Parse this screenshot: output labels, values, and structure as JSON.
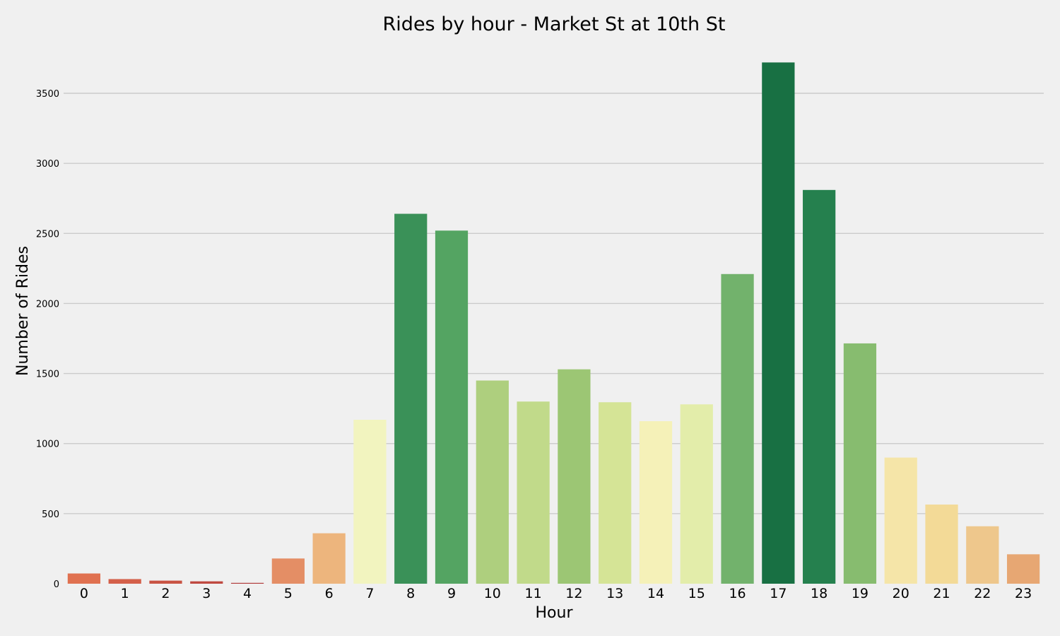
{
  "chart_data": {
    "type": "bar",
    "title": "Rides by hour - Market St at 10th St",
    "xlabel": "Hour",
    "ylabel": "Number of Rides",
    "categories": [
      "0",
      "1",
      "2",
      "3",
      "4",
      "5",
      "6",
      "7",
      "8",
      "9",
      "10",
      "11",
      "12",
      "13",
      "14",
      "15",
      "16",
      "17",
      "18",
      "19",
      "20",
      "21",
      "22",
      "23"
    ],
    "values": [
      73,
      33,
      22,
      17,
      6,
      180,
      360,
      1170,
      2640,
      2520,
      1450,
      1300,
      1530,
      1295,
      1160,
      1280,
      2210,
      3720,
      2810,
      1715,
      900,
      565,
      410,
      210
    ],
    "colors": [
      "#e07150",
      "#d4604a",
      "#c95444",
      "#bf4940",
      "#b13c3b",
      "#e48e65",
      "#edb57d",
      "#f2f4bf",
      "#3a9158",
      "#54a462",
      "#aecf7e",
      "#c1da8a",
      "#9cc674",
      "#d5e496",
      "#f5f1b8",
      "#e3edaa",
      "#72b26c",
      "#187043",
      "#25804e",
      "#87bc6f",
      "#f5e5a8",
      "#f3da97",
      "#eec78c",
      "#e7a773"
    ],
    "ylim": [
      0,
      3800
    ],
    "yticks": [
      0,
      500,
      1000,
      1500,
      2000,
      2500,
      3000,
      3500
    ],
    "grid": true,
    "legend": "none"
  }
}
